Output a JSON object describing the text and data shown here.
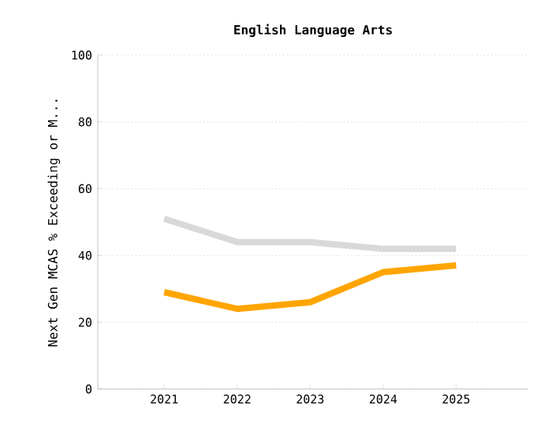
{
  "chart_data": {
    "type": "line",
    "title": "English Language Arts",
    "ylabel": "Next Gen MCAS % Exceeding or M...",
    "categories": [
      "2021",
      "2022",
      "2023",
      "2024",
      "2025"
    ],
    "series": [
      {
        "color": "#d9d9d9",
        "values": [
          51,
          44,
          44,
          42,
          42
        ]
      },
      {
        "color": "#ffa500",
        "values": [
          29,
          24,
          26,
          35,
          37
        ]
      }
    ],
    "ylim": [
      0,
      100
    ],
    "yticks": [
      0,
      20,
      40,
      60,
      80,
      100
    ],
    "grid": "y",
    "marker": "none",
    "line_style": "solid"
  }
}
